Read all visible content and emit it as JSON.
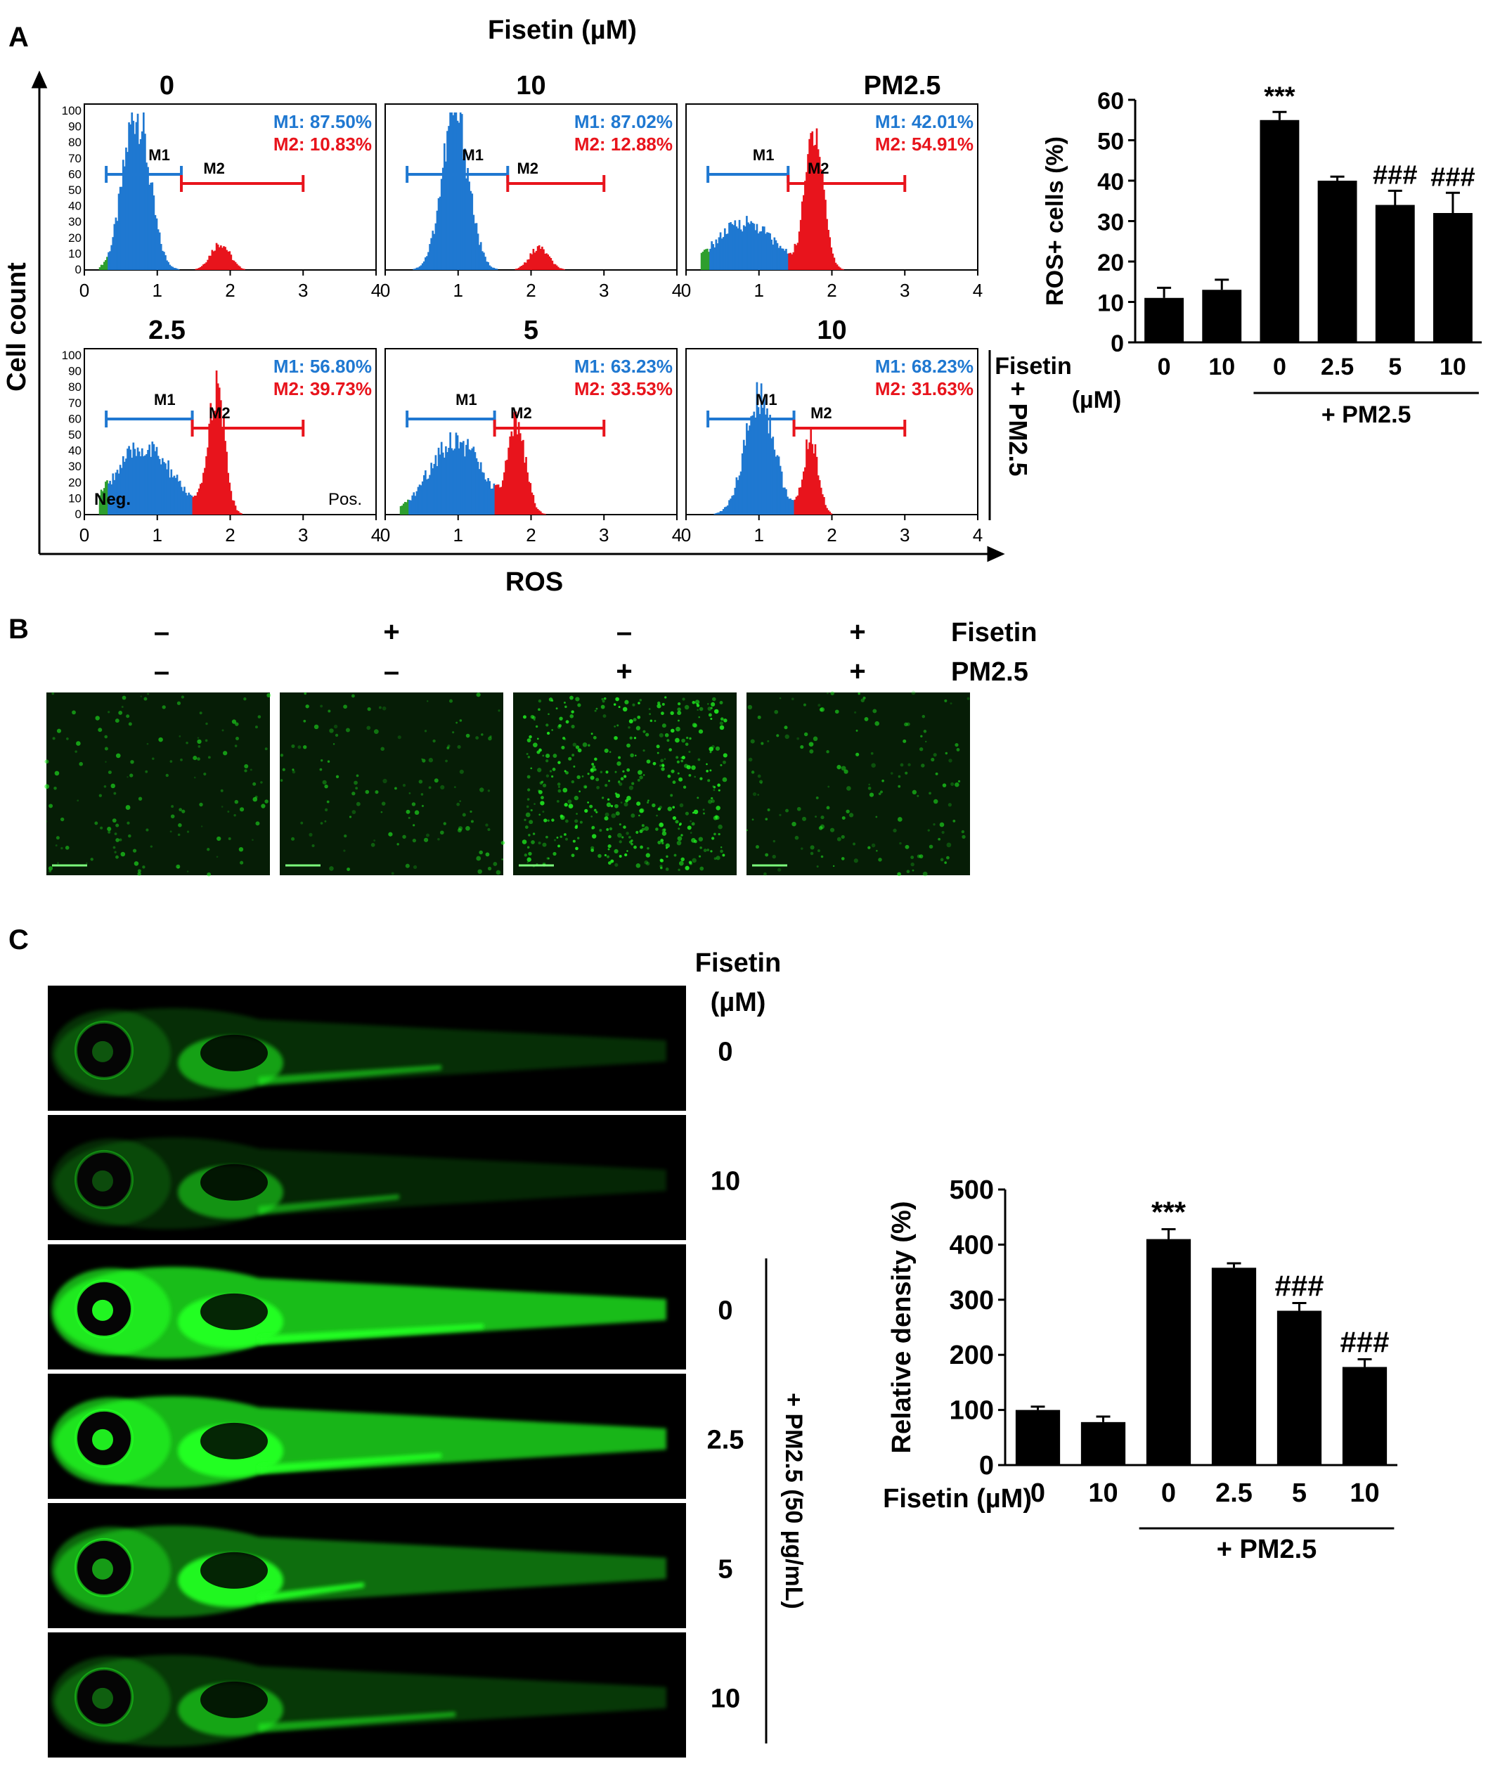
{
  "panel_labels": {
    "a": "A",
    "b": "B",
    "c": "C"
  },
  "panel_a": {
    "header": "Fisetin (µM)",
    "y_label": "Cell count",
    "x_label": "ROS",
    "side_label": "+ PM2.5",
    "m1": "M1",
    "m2": "M2",
    "neg": "Neg.",
    "pos": "Pos.",
    "x_ticks": [
      "0",
      "1",
      "2",
      "3",
      "4"
    ],
    "y_ticks": [
      "100",
      "90",
      "80",
      "70",
      "60",
      "50",
      "40",
      "30",
      "20",
      "10",
      "0"
    ],
    "histograms": [
      {
        "title": "0",
        "m1_text": "M1: 87.50%",
        "m2_text": "M2: 10.83%"
      },
      {
        "title": "10",
        "m1_text": "M1: 87.02%",
        "m2_text": "M2: 12.88%"
      },
      {
        "title": "PM2.5",
        "m1_text": "M1: 42.01%",
        "m2_text": "M2: 54.91%"
      },
      {
        "title": "2.5",
        "m1_text": "M1: 56.80%",
        "m2_text": "M2: 39.73%"
      },
      {
        "title": "5",
        "m1_text": "M1: 63.23%",
        "m2_text": "M2: 33.53%"
      },
      {
        "title": "10",
        "m1_text": "M1: 68.23%",
        "m2_text": "M2: 31.63%"
      }
    ]
  },
  "panel_b": {
    "row1_label": "Fisetin",
    "row2_label": "PM2.5",
    "row1": [
      "–",
      "+",
      "–",
      "+"
    ],
    "row2": [
      "–",
      "–",
      "+",
      "+"
    ]
  },
  "panel_c": {
    "header_line1": "Fisetin",
    "header_line2": "(µM)",
    "doses": [
      "0",
      "10",
      "0",
      "2.5",
      "5",
      "10"
    ],
    "side_label": "+ PM2.5 (50 µg/mL)"
  },
  "chart_data": [
    {
      "type": "bar",
      "ylabel": "ROS+ cells (%)",
      "ylim": [
        0,
        60
      ],
      "y_ticks": [
        0,
        10,
        20,
        30,
        40,
        50,
        60
      ],
      "x_title_line1": "Fisetin",
      "x_title_line2": "(µM)",
      "group_label": "+ PM2.5",
      "categories": [
        "0",
        "10",
        "0",
        "2.5",
        "5",
        "10"
      ],
      "values": [
        11,
        13,
        55,
        40,
        34,
        32
      ],
      "errors": [
        2.5,
        2.5,
        2,
        1,
        3.5,
        5
      ],
      "annotations": [
        "",
        "",
        "***",
        "",
        "###",
        "###"
      ],
      "colors": {
        "bar": "#000000"
      }
    },
    {
      "type": "bar",
      "ylabel": "Relative density (%)",
      "ylim": [
        0,
        500
      ],
      "y_ticks": [
        0,
        100,
        200,
        300,
        400,
        500
      ],
      "x_title": "Fisetin (µM)",
      "group_label": "+ PM2.5",
      "categories": [
        "0",
        "10",
        "0",
        "2.5",
        "5",
        "10"
      ],
      "values": [
        100,
        78,
        410,
        358,
        280,
        178
      ],
      "errors": [
        6,
        10,
        18,
        8,
        14,
        14
      ],
      "annotations": [
        "",
        "",
        "***",
        "",
        "###",
        "###"
      ],
      "colors": {
        "bar": "#000000"
      }
    }
  ],
  "colors": {
    "m1": "#1f78d1",
    "m2": "#e8141c",
    "neg": "#2e9e2e",
    "fluorescence": "#22ff22"
  }
}
